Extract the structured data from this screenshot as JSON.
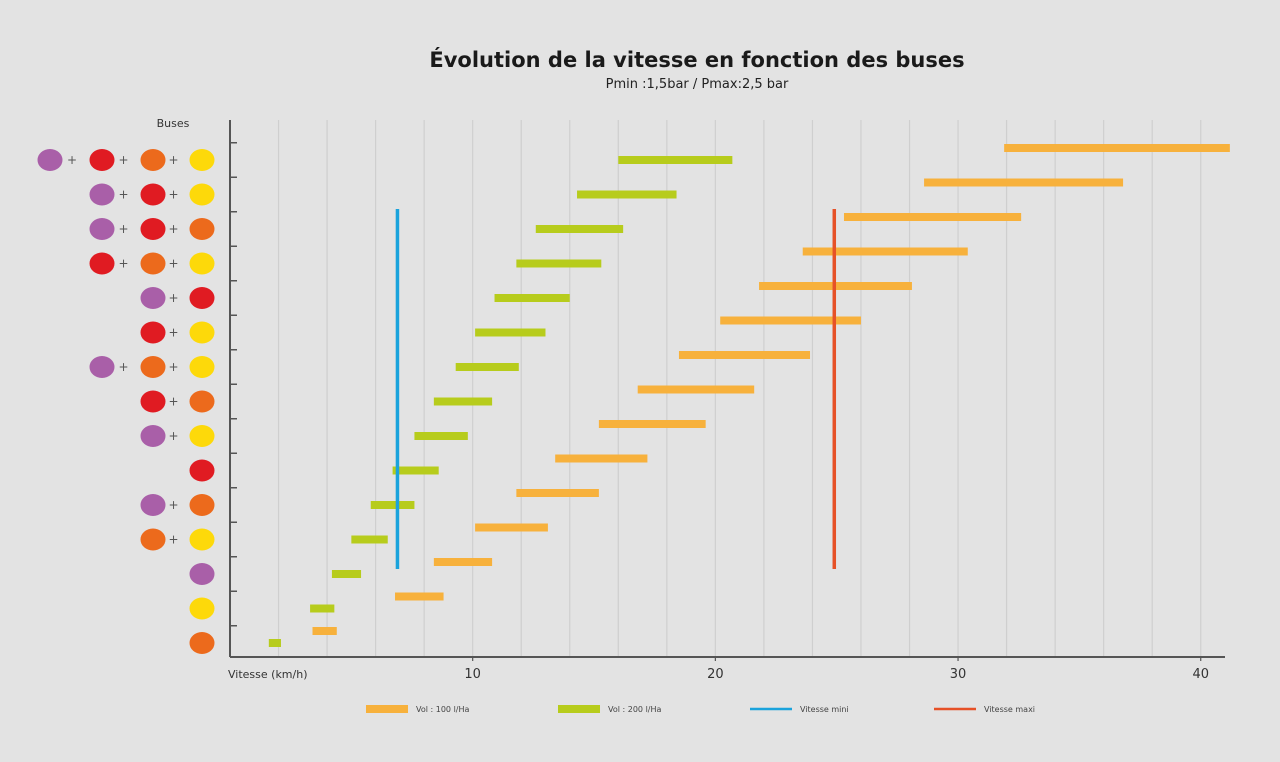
{
  "colors": {
    "violet": "#a95fa8",
    "rouge": "#e01b22",
    "orange": "#ec6a1c",
    "jaune": "#fdd90a",
    "bar100": "#f7b13c",
    "bar200": "#b7cc1c",
    "mini": "#1aa3dc",
    "maxi": "#e65127",
    "grid": "#cfcfcf",
    "axis": "#555555"
  },
  "chart_data": {
    "type": "bar",
    "orientation": "horizontal-range",
    "title": "Évolution de la vitesse en fonction des buses",
    "subtitle": "Pmin :1,5bar /  Pmax:2,5 bar",
    "xlabel": "Vitesse  (km/h)",
    "ylabel": "Buses",
    "xlim": [
      0,
      41
    ],
    "xticks": [
      10,
      20,
      30,
      40
    ],
    "grid": true,
    "legend_position": "bottom",
    "legend": [
      {
        "label": "Vol : 100 l/Ha",
        "kind": "bar",
        "color_key": "bar100"
      },
      {
        "label": "Vol : 200 l/Ha",
        "kind": "bar",
        "color_key": "bar200"
      },
      {
        "label": "Vitesse mini",
        "kind": "line",
        "color_key": "mini"
      },
      {
        "label": "Vitesse maxi",
        "kind": "line",
        "color_key": "maxi"
      }
    ],
    "categories": [
      [
        "violet",
        "rouge",
        "orange",
        "jaune"
      ],
      [
        "violet",
        "rouge",
        "jaune"
      ],
      [
        "violet",
        "rouge",
        "orange"
      ],
      [
        "rouge",
        "orange",
        "jaune"
      ],
      [
        "violet",
        "rouge"
      ],
      [
        "rouge",
        "jaune"
      ],
      [
        "violet",
        "orange",
        "jaune"
      ],
      [
        "rouge",
        "orange"
      ],
      [
        "violet",
        "jaune"
      ],
      [
        "rouge"
      ],
      [
        "violet",
        "orange"
      ],
      [
        "orange",
        "jaune"
      ],
      [
        "violet"
      ],
      [
        "jaune"
      ],
      [
        "orange"
      ]
    ],
    "series": [
      {
        "name": "Vol : 100 l/Ha",
        "color_key": "bar100",
        "ranges": [
          [
            31.9,
            41.2
          ],
          [
            28.6,
            36.8
          ],
          [
            25.3,
            32.6
          ],
          [
            23.6,
            30.4
          ],
          [
            21.8,
            28.1
          ],
          [
            20.2,
            26.0
          ],
          [
            18.5,
            23.9
          ],
          [
            16.8,
            21.6
          ],
          [
            15.2,
            19.6
          ],
          [
            13.4,
            17.2
          ],
          [
            11.8,
            15.2
          ],
          [
            10.1,
            13.1
          ],
          [
            8.4,
            10.8
          ],
          [
            6.8,
            8.8
          ],
          [
            3.4,
            4.4
          ]
        ]
      },
      {
        "name": "Vol : 200 l/Ha",
        "color_key": "bar200",
        "ranges": [
          [
            16.0,
            20.7
          ],
          [
            14.3,
            18.4
          ],
          [
            12.6,
            16.2
          ],
          [
            11.8,
            15.3
          ],
          [
            10.9,
            14.0
          ],
          [
            10.1,
            13.0
          ],
          [
            9.3,
            11.9
          ],
          [
            8.4,
            10.8
          ],
          [
            7.6,
            9.8
          ],
          [
            6.7,
            8.6
          ],
          [
            5.8,
            7.6
          ],
          [
            5.0,
            6.5
          ],
          [
            4.2,
            5.4
          ],
          [
            3.3,
            4.3
          ],
          [
            1.6,
            2.1
          ]
        ]
      }
    ],
    "vlines": [
      {
        "name": "Vitesse mini",
        "color_key": "mini",
        "x": 6.9,
        "from_row": 2,
        "to_row": 12
      },
      {
        "name": "Vitesse maxi",
        "color_key": "maxi",
        "x": 24.9,
        "from_row": 2,
        "to_row": 12
      }
    ]
  }
}
